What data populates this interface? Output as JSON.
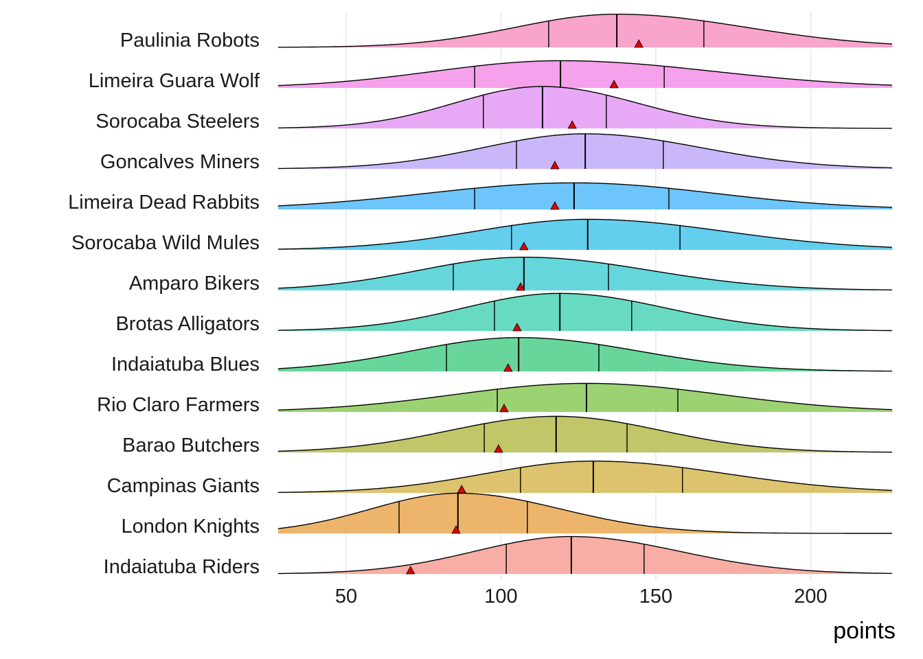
{
  "chart_data": {
    "type": "ridgeline",
    "title": "",
    "xlabel": "points",
    "ylabel": "",
    "xlim": [
      28,
      226
    ],
    "xticks": [
      50,
      100,
      150,
      200
    ],
    "grid": true,
    "legend": "none",
    "series": [
      {
        "name": "Paulinia Robots",
        "quartiles": [
          115.4,
          137.4,
          165.5
        ],
        "point": 144.5,
        "color": "#F99FC7"
      },
      {
        "name": "Limeira Guara Wolf",
        "quartiles": [
          91.5,
          119.2,
          152.7
        ],
        "point": 136.5,
        "color": "#F49CEB"
      },
      {
        "name": "Sorocaba Steelers",
        "quartiles": [
          94.3,
          113.4,
          134.0
        ],
        "point": 123.0,
        "color": "#E6A4F6"
      },
      {
        "name": "Goncalves Miners",
        "quartiles": [
          105.0,
          127.2,
          152.4
        ],
        "point": 117.4,
        "color": "#C7B3FA"
      },
      {
        "name": "Limeira Dead Rabbits",
        "quartiles": [
          91.5,
          123.6,
          154.2
        ],
        "point": 117.4,
        "color": "#66C2FB"
      },
      {
        "name": "Sorocaba Wild Mules",
        "quartiles": [
          103.4,
          128.0,
          157.8
        ],
        "point": 107.4,
        "color": "#5CCBEE"
      },
      {
        "name": "Amparo Bikers",
        "quartiles": [
          84.6,
          107.4,
          134.7
        ],
        "point": 106.3,
        "color": "#5DD5DA"
      },
      {
        "name": "Brotas Alligators",
        "quartiles": [
          97.9,
          119.0,
          142.2
        ],
        "point": 105.2,
        "color": "#60D8BE"
      },
      {
        "name": "Indaiatuba Blues",
        "quartiles": [
          82.4,
          105.7,
          131.6
        ],
        "point": 102.3,
        "color": "#60D496"
      },
      {
        "name": "Rio Claro Farmers",
        "quartiles": [
          98.8,
          127.6,
          157.1
        ],
        "point": 101.0,
        "color": "#98D06A"
      },
      {
        "name": "Barao Butchers",
        "quartiles": [
          94.6,
          117.8,
          140.7
        ],
        "point": 99.2,
        "color": "#BEC360"
      },
      {
        "name": "Campinas Giants",
        "quartiles": [
          106.3,
          129.8,
          158.6
        ],
        "point": 87.3,
        "color": "#DBC066"
      },
      {
        "name": "London Knights",
        "quartiles": [
          67.1,
          86.1,
          108.5
        ],
        "point": 85.5,
        "color": "#EBB163"
      },
      {
        "name": "Indaiatuba Riders",
        "quartiles": [
          101.7,
          122.7,
          146.2
        ],
        "point": 70.8,
        "color": "#F8A9A0"
      }
    ]
  }
}
